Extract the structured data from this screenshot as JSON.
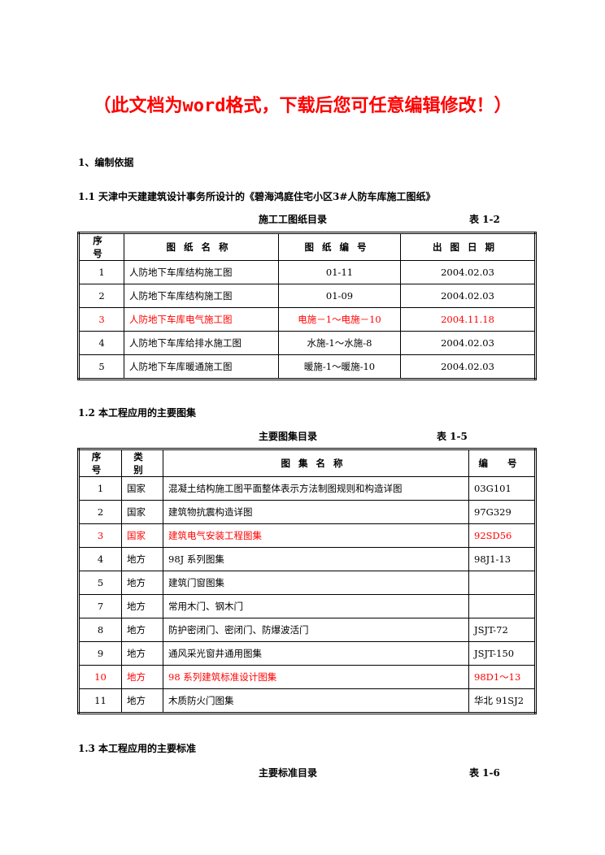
{
  "banner": "（此文档为word格式，下载后您可任意编辑修改！）",
  "section1": "1、编制依据",
  "section1_1": "1.1 天津中天建建筑设计事务所设计的《碧海鸿庭住宅小区3#人防车库施工图纸》",
  "table1": {
    "caption": "施工工图纸目录",
    "table_no": "表 1-2",
    "headers": [
      "序号",
      "图纸名称",
      "图纸编号",
      "出图日期"
    ],
    "rows": [
      {
        "cells": [
          "1",
          "人防地下车库结构施工图",
          "01-11",
          "2004.02.03"
        ],
        "highlight": false
      },
      {
        "cells": [
          "2",
          "人防地下车库结构施工图",
          "01-09",
          "2004.02.03"
        ],
        "highlight": false
      },
      {
        "cells": [
          "3",
          "人防地下车库电气施工图",
          "电施－1～电施－10",
          "2004.11.18"
        ],
        "highlight": true
      },
      {
        "cells": [
          "4",
          "人防地下车库给排水施工图",
          "水施-1～水施-8",
          "2004.02.03"
        ],
        "highlight": false
      },
      {
        "cells": [
          "5",
          "人防地下车库暖通施工图",
          "暖施-1～暖施-10",
          "2004.02.03"
        ],
        "highlight": false
      }
    ]
  },
  "section1_2": "1.2 本工程应用的主要图集",
  "table2": {
    "caption": "主要图集目录",
    "table_no": "表 1-5",
    "headers": [
      "序号",
      "类别",
      "图集名称",
      "编 号"
    ],
    "rows": [
      {
        "cells": [
          "1",
          "国家",
          "混凝土结构施工图平面整体表示方法制图规则和构造详图",
          "03G101"
        ],
        "highlight": false
      },
      {
        "cells": [
          "2",
          "国家",
          "建筑物抗震构造详图",
          "97G329"
        ],
        "highlight": false
      },
      {
        "cells": [
          "3",
          "国家",
          "建筑电气安装工程图集",
          "92SD56"
        ],
        "highlight": true
      },
      {
        "cells": [
          "4",
          "地方",
          "98J 系列图集",
          "98J1-13"
        ],
        "highlight": false
      },
      {
        "cells": [
          "5",
          "地方",
          "建筑门窗图集",
          ""
        ],
        "highlight": false
      },
      {
        "cells": [
          "7",
          "地方",
          "常用木门、钢木门",
          ""
        ],
        "highlight": false
      },
      {
        "cells": [
          "8",
          "地方",
          "防护密闭门、密闭门、防爆波活门",
          "JSJT-72"
        ],
        "highlight": false
      },
      {
        "cells": [
          "9",
          "地方",
          "通风采光窗井通用图集",
          "JSJT-150"
        ],
        "highlight": false
      },
      {
        "cells": [
          "10",
          "地方",
          "98 系列建筑标准设计图集",
          "98D1～13"
        ],
        "highlight": true
      },
      {
        "cells": [
          "11",
          "地方",
          "木质防火门图集",
          "华北 91SJ2"
        ],
        "highlight": false
      }
    ]
  },
  "section1_3": "1.3 本工程应用的主要标准",
  "table3": {
    "caption": "主要标准目录",
    "table_no": "表 1-6"
  },
  "colors": {
    "highlight": "#ff0000",
    "text": "#000000"
  }
}
